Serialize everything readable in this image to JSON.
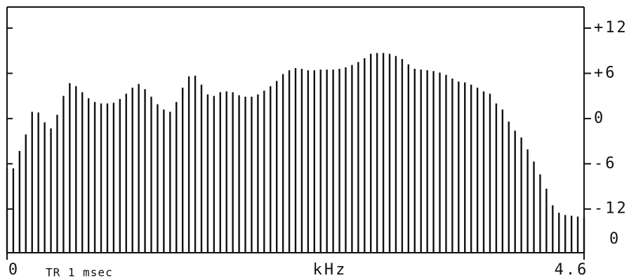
{
  "chart_data": {
    "type": "bar",
    "x_label": "kHz",
    "annotation": "TR 1 msec",
    "baseline_label": "0",
    "color": "#111111",
    "xlim": [
      0,
      4.6
    ],
    "xticks": [
      0,
      4.6
    ],
    "ylim": [
      -17.8,
      14.8
    ],
    "yticks": [
      {
        "value": 12,
        "label": "+12"
      },
      {
        "value": 6,
        "label": "+6"
      },
      0,
      -6,
      -12
    ],
    "x": [
      0,
      0.05,
      0.1,
      0.15,
      0.2,
      0.25,
      0.3,
      0.35,
      0.4,
      0.45,
      0.5,
      0.55,
      0.6,
      0.65,
      0.7,
      0.75,
      0.8,
      0.85,
      0.9,
      0.95,
      1.0,
      1.05,
      1.1,
      1.15,
      1.2,
      1.25,
      1.3,
      1.35,
      1.4,
      1.45,
      1.5,
      1.55,
      1.6,
      1.65,
      1.7,
      1.75,
      1.8,
      1.85,
      1.9,
      1.95,
      2.0,
      2.05,
      2.1,
      2.15,
      2.2,
      2.25,
      2.3,
      2.35,
      2.4,
      2.45,
      2.5,
      2.55,
      2.6,
      2.65,
      2.7,
      2.75,
      2.8,
      2.85,
      2.9,
      2.95,
      3.0,
      3.05,
      3.1,
      3.15,
      3.2,
      3.25,
      3.3,
      3.35,
      3.4,
      3.45,
      3.5,
      3.55,
      3.6,
      3.65,
      3.7,
      3.75,
      3.8,
      3.85,
      3.9,
      3.95,
      4.0,
      4.05,
      4.1,
      4.15,
      4.2,
      4.25,
      4.3,
      4.35,
      4.4,
      4.45,
      4.5,
      4.55,
      4.6
    ],
    "values": [
      -6.6,
      -6.6,
      -4.3,
      -2.1,
      0.9,
      0.8,
      -0.5,
      -1.3,
      0.5,
      3.0,
      4.7,
      4.3,
      3.5,
      2.7,
      2.2,
      2.0,
      2.0,
      2.1,
      2.6,
      3.3,
      4.1,
      4.6,
      3.9,
      2.9,
      1.9,
      1.2,
      0.9,
      2.2,
      4.1,
      5.6,
      5.7,
      4.5,
      3.2,
      3.0,
      3.5,
      3.6,
      3.5,
      3.1,
      2.9,
      2.9,
      3.2,
      3.7,
      4.3,
      5.0,
      5.9,
      6.4,
      6.7,
      6.6,
      6.4,
      6.4,
      6.5,
      6.5,
      6.5,
      6.6,
      6.8,
      7.1,
      7.5,
      8.0,
      8.6,
      8.7,
      8.7,
      8.6,
      8.3,
      7.9,
      7.2,
      6.6,
      6.5,
      6.4,
      6.3,
      6.1,
      5.8,
      5.3,
      4.9,
      4.8,
      4.5,
      4.1,
      3.6,
      3.3,
      2.0,
      1.2,
      -0.4,
      -1.6,
      -2.5,
      -4.1,
      -5.7,
      -7.4,
      -9.3,
      -11.5,
      -12.5,
      -12.8,
      -12.9,
      -13.0,
      -13.1
    ]
  }
}
